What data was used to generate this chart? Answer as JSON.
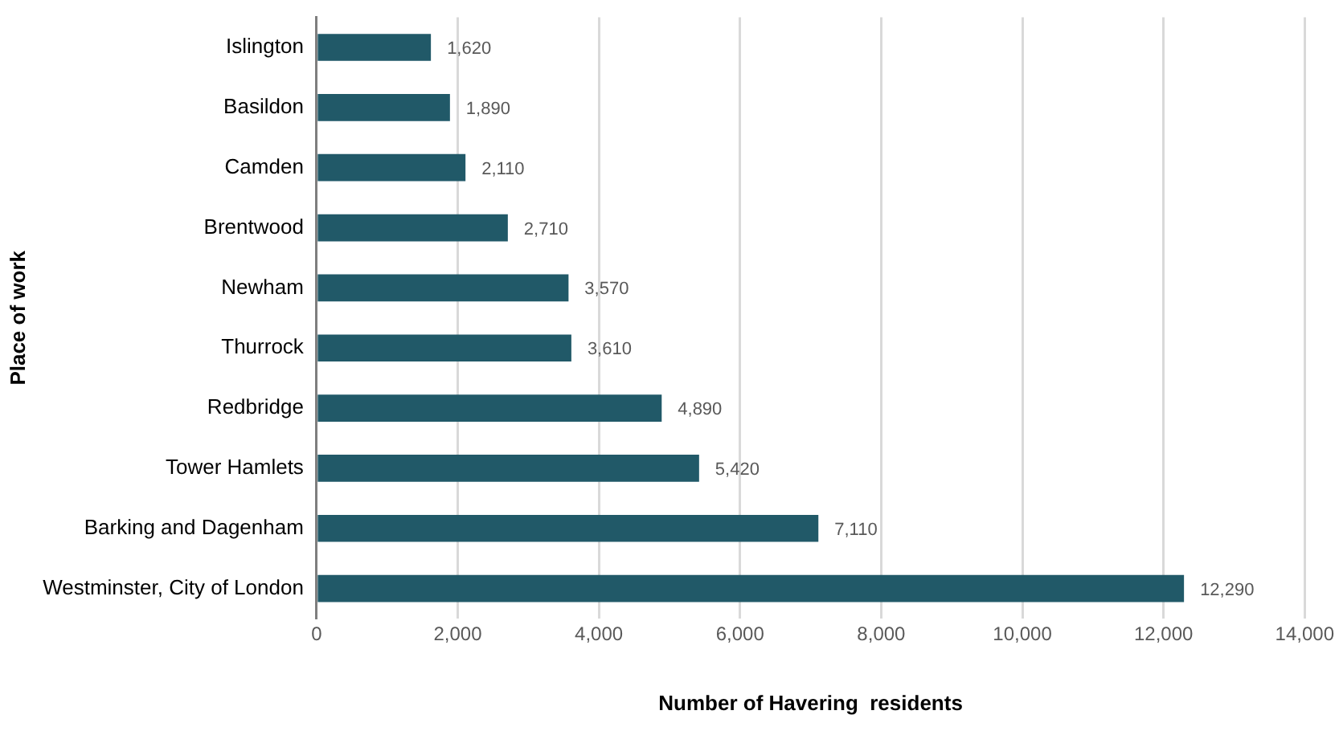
{
  "chart_data": {
    "type": "bar",
    "orientation": "horizontal",
    "xlabel": "Number of Havering  residents",
    "ylabel": "Place of work",
    "categories": [
      "Islington",
      "Basildon",
      "Camden",
      "Brentwood",
      "Newham",
      "Thurrock",
      "Redbridge",
      "Tower Hamlets",
      "Barking and Dagenham",
      "Westminster, City of London"
    ],
    "values": [
      1620,
      1890,
      2110,
      2710,
      3570,
      3610,
      4890,
      5420,
      7110,
      12290
    ],
    "value_labels": [
      "1,620",
      "1,890",
      "2,110",
      "2,710",
      "3,570",
      "3,610",
      "4,890",
      "5,420",
      "7,110",
      "12,290"
    ],
    "color": "#215968",
    "xlim": [
      0,
      14000
    ],
    "xticks": [
      0,
      {
        "value": 2000,
        "label": "2,000"
      },
      {
        "value": 4000,
        "label": "4,000"
      },
      {
        "value": 6000,
        "label": "6,000"
      },
      {
        "value": 8000,
        "label": "8,000"
      },
      {
        "value": 10000,
        "label": "10,000"
      },
      {
        "value": 12000,
        "label": "12,000"
      },
      {
        "value": 14000,
        "label": "14,000"
      }
    ],
    "grid": "x"
  }
}
